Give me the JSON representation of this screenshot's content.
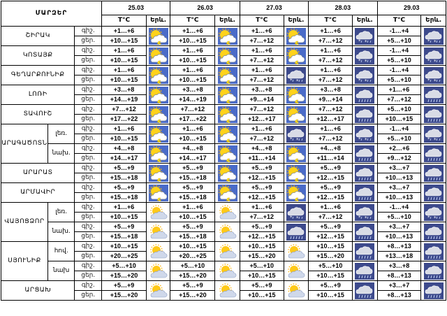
{
  "header": {
    "title": "ՄԱՐԶԵՐ",
    "dates": [
      "25.03",
      "26.03",
      "27.03",
      "28.03",
      "29.03"
    ],
    "temp_col": "T°C",
    "phen_col": "Երև."
  },
  "rows": [
    {
      "region": "ՇԻՐԱԿ",
      "sub": "",
      "span": 2,
      "lines": [
        {
          "label": "գիշ.",
          "temps": [
            "+1…+6",
            "+1…+6",
            "+1…+6",
            "+1…+6",
            "-1…+4"
          ],
          "icons": [
            "sun-cloud-storm",
            "sun-cloud-storm",
            "sun-cloud-storm",
            "rain-snow",
            "rain-snow"
          ]
        },
        {
          "label": "ցեր.",
          "temps": [
            "+10…+15",
            "+10…+15",
            "+7…+12",
            "+7…+12",
            "+5…+10"
          ]
        }
      ]
    },
    {
      "region": "ԿՈՏԱՅՔ",
      "sub": "",
      "span": 2,
      "lines": [
        {
          "label": "գիշ.",
          "temps": [
            "+1…+6",
            "+1…+6",
            "+1…+6",
            "+1…+6",
            "-1…+4"
          ],
          "icons": [
            "sun-cloud-storm",
            "sun-cloud-storm",
            "sun-cloud-storm",
            "rain-snow",
            "rain-snow"
          ]
        },
        {
          "label": "ցեր.",
          "temps": [
            "+10…+15",
            "+10…+15",
            "+7…+12",
            "+7…+12",
            "+5…+10"
          ]
        }
      ]
    },
    {
      "region": "ԳԵՂԱՐՔՈՒՆԻՔ",
      "sub": "",
      "span": 2,
      "lines": [
        {
          "label": "գիշ.",
          "temps": [
            "+1…+6",
            "+1…+6",
            "+1…+6",
            "+1…+6",
            "-1…+4"
          ],
          "icons": [
            "sun-cloud-storm",
            "sun-cloud-storm",
            "rain-snow",
            "rain-snow",
            "rain-snow"
          ]
        },
        {
          "label": "ցեր.",
          "temps": [
            "+10…+15",
            "+10…+15",
            "+7…+12",
            "+7…+12",
            "+5…+10"
          ]
        }
      ]
    },
    {
      "region": "ԼՈՌԻ",
      "sub": "",
      "span": 2,
      "lines": [
        {
          "label": "գիշ.",
          "temps": [
            "+3…+8",
            "+3…+8",
            "+3…+8",
            "+3…+8",
            "+1…+6"
          ],
          "icons": [
            "sun-cloud-storm",
            "sun-cloud-storm",
            "sun-cloud-storm",
            "cloud-rain",
            "cloud-rain"
          ]
        },
        {
          "label": "ցեր.",
          "temps": [
            "+14…+19",
            "+14…+19",
            "+9…+14",
            "+9…+14",
            "+7…+12"
          ]
        }
      ]
    },
    {
      "region": "ՏԱՎՈՒՇ",
      "sub": "",
      "span": 2,
      "lines": [
        {
          "label": "գիշ.",
          "temps": [
            "+7…+12",
            "+7…+12",
            "+7…+12",
            "+7…+12",
            "+5…+10"
          ],
          "icons": [
            "sun-cloud-storm",
            "sun-cloud-storm",
            "sun-cloud-storm",
            "cloud-rain",
            "cloud-rain"
          ]
        },
        {
          "label": "ցեր.",
          "temps": [
            "+17…+22",
            "+17…+22",
            "+12…+17",
            "+12…+17",
            "+10…+15"
          ]
        }
      ]
    },
    {
      "region": "ԱՐԱԳԱԾՈՏՆ",
      "sub": "լեռ.",
      "span": 4,
      "lines": [
        {
          "label": "գիշ.",
          "temps": [
            "+1…+6",
            "+1…+6",
            "+1…+6",
            "+1…+6",
            "-1…+4"
          ],
          "icons": [
            "sun-cloud-storm",
            "sun-cloud-storm",
            "rain-snow",
            "rain-snow",
            "rain-snow"
          ]
        },
        {
          "label": "ցեր.",
          "temps": [
            "+10…+15",
            "+10…+15",
            "+7…+12",
            "+7…+12",
            "+5…+10"
          ]
        }
      ]
    },
    {
      "region": "",
      "sub": "նախ.",
      "span": 0,
      "lines": [
        {
          "label": "գիշ.",
          "temps": [
            "+4…+8",
            "+4…+8",
            "+4…+8",
            "+4…+8",
            "+2…+6"
          ],
          "icons": [
            "sun-cloud-storm",
            "sun-cloud-storm",
            "sun-cloud-storm",
            "cloud-rain",
            "cloud-rain"
          ]
        },
        {
          "label": "ցեր.",
          "temps": [
            "+14…+17",
            "+14…+17",
            "+11…+14",
            "+11…+14",
            "+9…+12"
          ]
        }
      ]
    },
    {
      "region": "ԱՐԱՐԱՏ",
      "sub": "",
      "span": 2,
      "lines": [
        {
          "label": "գիշ.",
          "temps": [
            "+5…+9",
            "+5…+9",
            "+5…+9",
            "+5…+9",
            "+3…+7"
          ],
          "icons": [
            "sun-cloud-storm",
            "sun-cloud-storm",
            "sun-cloud-storm",
            "cloud-rain",
            "cloud-rain"
          ]
        },
        {
          "label": "ցեր.",
          "temps": [
            "+15…+18",
            "+15…+18",
            "+12…+15",
            "+12…+15",
            "+10…+13"
          ]
        }
      ]
    },
    {
      "region": "ԱՐՄԱՎԻՐ",
      "sub": "",
      "span": 2,
      "lines": [
        {
          "label": "գիշ.",
          "temps": [
            "+5…+9",
            "+5…+9",
            "+5…+9",
            "+5…+9",
            "+3…+7"
          ],
          "icons": [
            "sun-cloud-storm",
            "sun-cloud-storm",
            "sun-cloud-storm",
            "cloud-rain",
            "cloud-rain"
          ]
        },
        {
          "label": "ցեր.",
          "temps": [
            "+15…+18",
            "+15…+18",
            "+12…+15",
            "+12…+15",
            "+10…+13"
          ]
        }
      ]
    },
    {
      "region": "ՎԱՅՈՑՁՈՐ",
      "sub": "լեռ.",
      "span": 4,
      "lines": [
        {
          "label": "գիշ.",
          "temps": [
            "+1…+6",
            "+1…+6",
            "+1…+6",
            "+1…+6",
            "-1…+4"
          ],
          "icons": [
            "sun-cloud",
            "sun-cloud",
            "rain-snow",
            "rain-snow",
            "rain-snow"
          ]
        },
        {
          "label": "ցեր.",
          "temps": [
            "+10…+15",
            "+10…+15",
            "+7…+12",
            "+7…+12",
            "+5…+10"
          ]
        }
      ]
    },
    {
      "region": "",
      "sub": "նախ.",
      "span": 0,
      "lines": [
        {
          "label": "գիշ.",
          "temps": [
            "+5…+9",
            "+5…+9",
            "+5…+9",
            "+5…+9",
            "+3…+7"
          ],
          "icons": [
            "sun-cloud",
            "sun-cloud",
            "cloud-rain",
            "cloud-rain",
            "cloud-rain"
          ]
        },
        {
          "label": "ցեր.",
          "temps": [
            "+15…+18",
            "+15…+18",
            "+12…+15",
            "+12…+15",
            "+10…+13"
          ]
        }
      ]
    },
    {
      "region": "ՍՅՈՒՆԻՔ",
      "sub": "հով.",
      "span": 4,
      "lines": [
        {
          "label": "գիշ.",
          "temps": [
            "+10…+15",
            "+10…+15",
            "+10…+15",
            "+10…+15",
            "+8…+13"
          ],
          "icons": [
            "sun-cloud",
            "sun-cloud",
            "sun-cloud",
            "cloud-rain",
            "cloud-rain"
          ]
        },
        {
          "label": "ցեր.",
          "temps": [
            "+20…+25",
            "+20…+25",
            "+15…+20",
            "+15…+20",
            "+13…+18"
          ]
        }
      ]
    },
    {
      "region": "",
      "sub": "նախ",
      "span": 0,
      "lines": [
        {
          "label": "գիշ.",
          "temps": [
            "+5…+10",
            "+5…+10",
            "+5…+10",
            "+5…+10",
            "+3…+8"
          ],
          "icons": [
            "sun-cloud",
            "sun-cloud",
            "sun-cloud",
            "cloud-rain",
            "cloud-rain"
          ]
        },
        {
          "label": "ցեր.",
          "temps": [
            "+15…+20",
            "+15…+20",
            "+10…+15",
            "+10…+15",
            "+8…+13"
          ]
        }
      ]
    },
    {
      "region": "ԱՐՑԱԽ",
      "sub": "",
      "span": 2,
      "lines": [
        {
          "label": "գիշ.",
          "temps": [
            "+5…+9",
            "+5…+9",
            "+5…+9",
            "+5…+9",
            "+3…+7"
          ],
          "icons": [
            "sun-cloud",
            "sun-cloud",
            "sun-cloud",
            "cloud-rain",
            "cloud-rain"
          ]
        },
        {
          "label": "ցեր.",
          "temps": [
            "+15…+20",
            "+15…+20",
            "+10…+15",
            "+10…+15",
            "+8…+13"
          ]
        }
      ]
    }
  ]
}
